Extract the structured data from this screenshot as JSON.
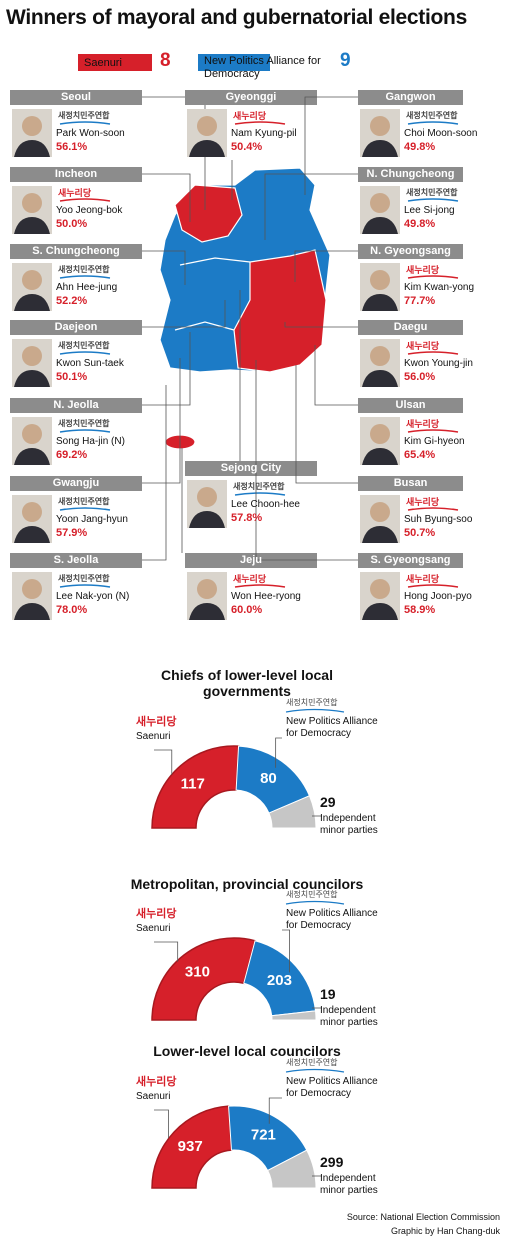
{
  "title": "Winners of mayoral and gubernatorial elections",
  "legend": {
    "parties": [
      {
        "name": "Saenuri",
        "logo": "새누리당",
        "color": "#d6202a",
        "count": 8
      },
      {
        "name": "New Politics Alliance for Democracy",
        "logo": "새정치민주연합",
        "color": "#1c7bc6",
        "count": 9
      }
    ]
  },
  "winners": [
    {
      "region": "Seoul",
      "name": "Park Won-soon",
      "share": "56.1%",
      "party": 1
    },
    {
      "region": "Incheon",
      "name": "Yoo Jeong-bok",
      "share": "50.0%",
      "party": 0
    },
    {
      "region": "S. Chungcheong",
      "name": "Ahn Hee-jung",
      "share": "52.2%",
      "party": 1
    },
    {
      "region": "Daejeon",
      "name": "Kwon Sun-taek",
      "share": "50.1%",
      "party": 1
    },
    {
      "region": "N. Jeolla",
      "name": "Song Ha-jin (N)",
      "share": "69.2%",
      "party": 1
    },
    {
      "region": "Gwangju",
      "name": "Yoon Jang-hyun",
      "share": "57.9%",
      "party": 1
    },
    {
      "region": "S. Jeolla",
      "name": "Lee Nak-yon (N)",
      "share": "78.0%",
      "party": 1
    },
    {
      "region": "Gyeonggi",
      "name": "Nam Kyung-pil",
      "share": "50.4%",
      "party": 0
    },
    {
      "region": "Sejong City",
      "name": "Lee Choon-hee",
      "share": "57.8%",
      "party": 1
    },
    {
      "region": "Jeju",
      "name": "Won Hee-ryong",
      "share": "60.0%",
      "party": 0
    },
    {
      "region": "Gangwon",
      "name": "Choi Moon-soon",
      "share": "49.8%",
      "party": 1
    },
    {
      "region": "N. Chungcheong",
      "name": "Lee Si-jong",
      "share": "49.8%",
      "party": 1
    },
    {
      "region": "N. Gyeongsang",
      "name": "Kim Kwan-yong",
      "share": "77.7%",
      "party": 0
    },
    {
      "region": "Daegu",
      "name": "Kwon Young-jin",
      "share": "56.0%",
      "party": 0
    },
    {
      "region": "Ulsan",
      "name": "Kim Gi-hyeon",
      "share": "65.4%",
      "party": 0
    },
    {
      "region": "Busan",
      "name": "Suh Byung-soo",
      "share": "50.7%",
      "party": 0
    },
    {
      "region": "S. Gyeongsang",
      "name": "Hong Joon-pyo",
      "share": "58.9%",
      "party": 0
    }
  ],
  "chart_data": [
    {
      "type": "semi-donut",
      "title": "Chiefs of lower-level local governments",
      "categories": [
        "Saenuri",
        "New Politics Alliance for Democracy",
        "Independent minor parties"
      ],
      "values": [
        117,
        80,
        29
      ],
      "colors": [
        "#d6202a",
        "#1c7bc6",
        "#c6c6c6"
      ]
    },
    {
      "type": "semi-donut",
      "title": "Metropolitan, provincial councilors",
      "categories": [
        "Saenuri",
        "New Politics Alliance for Democracy",
        "Independent minor parties"
      ],
      "values": [
        310,
        203,
        19
      ],
      "colors": [
        "#d6202a",
        "#1c7bc6",
        "#c6c6c6"
      ]
    },
    {
      "type": "semi-donut",
      "title": "Lower-level local councilors",
      "categories": [
        "Saenuri",
        "New Politics Alliance for Democracy",
        "Independent minor parties"
      ],
      "values": [
        937,
        721,
        299
      ],
      "colors": [
        "#d6202a",
        "#1c7bc6",
        "#c6c6c6"
      ]
    }
  ],
  "source": [
    "Source: National Election Commission",
    "Graphic by Han Chang-duk"
  ]
}
